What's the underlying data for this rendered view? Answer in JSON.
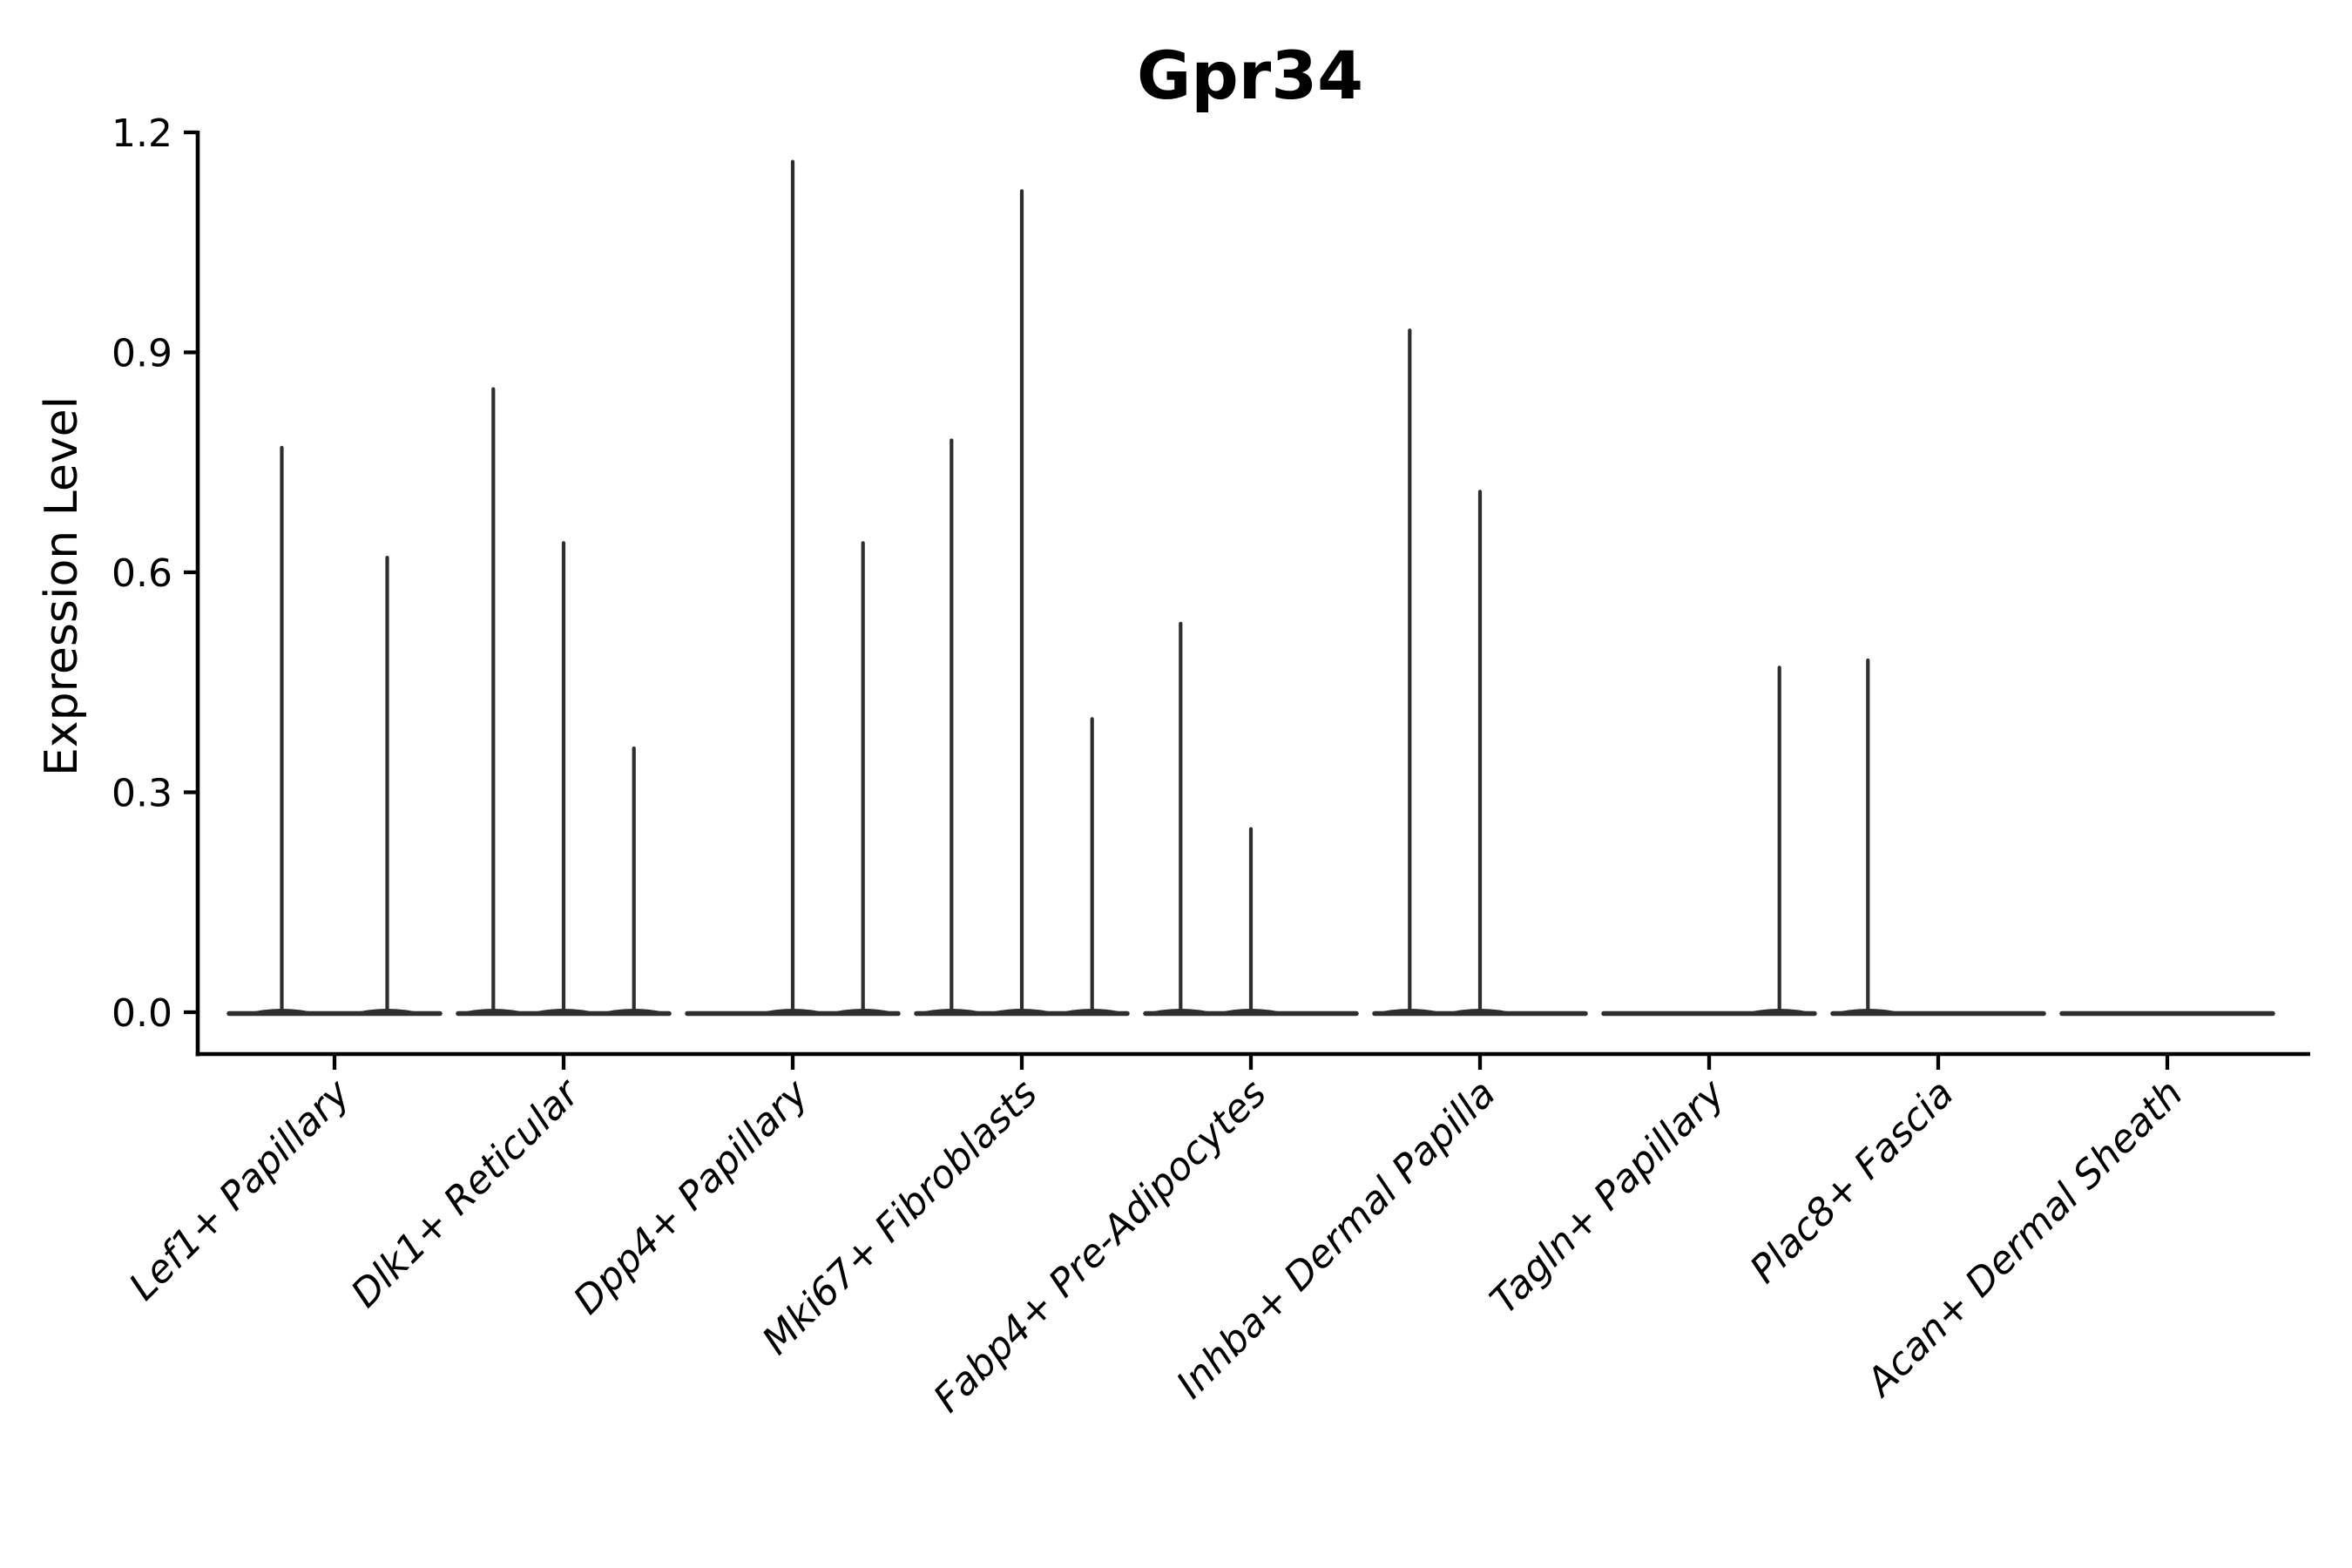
{
  "figure": {
    "background": "#ffffff",
    "violin_color": "#2e2e2e",
    "axis_color": "#000000"
  },
  "chart_data": {
    "type": "violin",
    "title": "Gpr34",
    "ylabel": "Expression Level",
    "xlabel": "",
    "ylim": [
      0,
      1.2
    ],
    "yticks": [
      0,
      0.3,
      0.6,
      0.9,
      1.2
    ],
    "ytick_labels": [
      "0.0",
      "0.3",
      "0.6",
      "0.9",
      "1.2"
    ],
    "grid": false,
    "legend": "none",
    "categories": [
      "Lef1+ Papillary",
      "Dlk1+ Reticular",
      "Dpp4+ Papillary",
      "Mki67+ Fibroblasts",
      "Fabp4+ Pre-Adipocytes",
      "Inhba+ Dermal Papilla",
      "Tagln+ Papillary",
      "Plac8+ Fascia",
      "Acan+ Dermal Sheath"
    ],
    "groups": [
      {
        "category": "Lef1+ Papillary",
        "violins": [
          {
            "offset": -60.5,
            "max": 0.77
          },
          {
            "offset": 60.5,
            "max": 0.62
          }
        ]
      },
      {
        "category": "Dlk1+ Reticular",
        "violins": [
          {
            "offset": -80.7,
            "max": 0.85
          },
          {
            "offset": 0,
            "max": 0.64
          },
          {
            "offset": 80.7,
            "max": 0.36
          }
        ]
      },
      {
        "category": "Dpp4+ Papillary",
        "violins": [
          {
            "offset": 0,
            "max": 1.16
          },
          {
            "offset": 80.7,
            "max": 0.64
          }
        ]
      },
      {
        "category": "Mki67+ Fibroblasts",
        "violins": [
          {
            "offset": -80.7,
            "max": 0.78
          },
          {
            "offset": 0,
            "max": 1.12
          },
          {
            "offset": 80.7,
            "max": 0.4
          }
        ]
      },
      {
        "category": "Fabp4+ Pre-Adipocytes",
        "violins": [
          {
            "offset": -80.7,
            "max": 0.53
          },
          {
            "offset": 0,
            "max": 0.25
          }
        ]
      },
      {
        "category": "Inhba+ Dermal Papilla",
        "violins": [
          {
            "offset": -80.7,
            "max": 0.93
          },
          {
            "offset": 0,
            "max": 0.71
          }
        ]
      },
      {
        "category": "Tagln+ Papillary",
        "violins": [
          {
            "offset": 80.7,
            "max": 0.47
          }
        ]
      },
      {
        "category": "Plac8+ Fascia",
        "violins": [
          {
            "offset": -80.7,
            "max": 0.48
          }
        ]
      },
      {
        "category": "Acan+ Dermal Sheath",
        "violins": []
      }
    ]
  }
}
